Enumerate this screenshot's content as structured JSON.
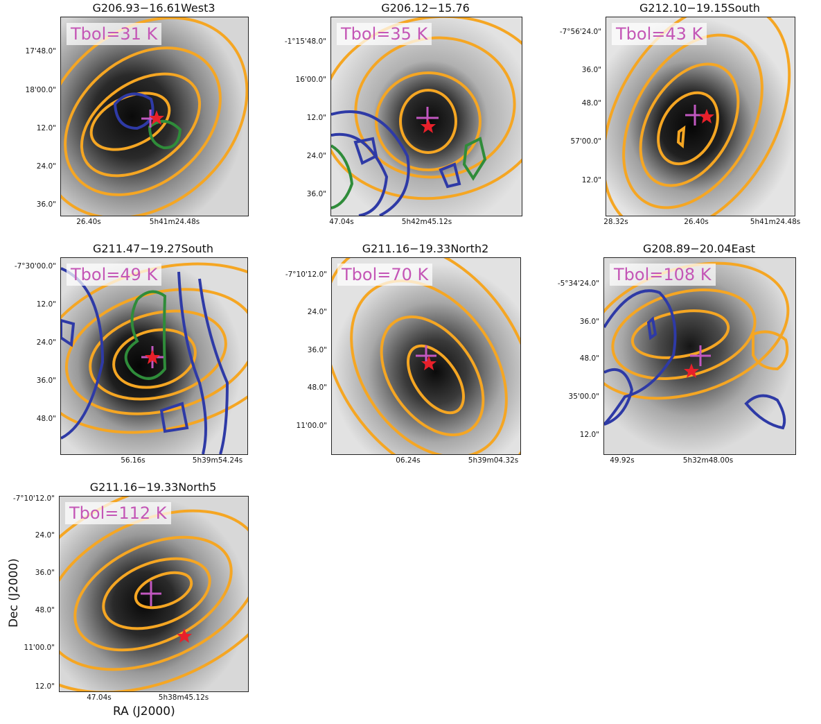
{
  "colors": {
    "contour_orange": "#f5a623",
    "contour_blue": "#2e3aa6",
    "contour_green": "#2f8c3a",
    "cross": "#c157c0",
    "star": "#e8202a",
    "label_text": "#c456b6"
  },
  "axis_labels": {
    "x": "RA (J2000)",
    "y": "Dec (J2000)"
  },
  "panels": [
    {
      "title": "G206.93−16.61West3",
      "tbol": "Tbol=31 K",
      "yticks": [
        "17'48.0\"",
        "18'00.0\"",
        "12.0\"",
        "24.0\"",
        "36.0\""
      ],
      "xticks": [
        "26.40s",
        "5h41m24.48s"
      ]
    },
    {
      "title": "G206.12−15.76",
      "tbol": "Tbol=35 K",
      "yticks": [
        "-1°15'48.0\"",
        "16'00.0\"",
        "12.0\"",
        "24.0\"",
        "36.0\""
      ],
      "xticks": [
        "47.04s",
        "5h42m45.12s"
      ]
    },
    {
      "title": "G212.10−19.15South",
      "tbol": "Tbol=43 K",
      "yticks": [
        "-7°56'24.0\"",
        "36.0\"",
        "48.0\"",
        "57'00.0\"",
        "12.0\""
      ],
      "xticks": [
        "28.32s",
        "26.40s",
        "5h41m24.48s"
      ]
    },
    {
      "title": "G211.47−19.27South",
      "tbol": "Tbol=49 K",
      "yticks": [
        "-7°30'00.0\"",
        "12.0\"",
        "24.0\"",
        "36.0\"",
        "48.0\""
      ],
      "xticks": [
        "56.16s",
        "5h39m54.24s"
      ]
    },
    {
      "title": "G211.16−19.33North2",
      "tbol": "Tbol=70 K",
      "yticks": [
        "-7°10'12.0\"",
        "24.0\"",
        "36.0\"",
        "48.0\"",
        "11'00.0\""
      ],
      "xticks": [
        "06.24s",
        "5h39m04.32s"
      ]
    },
    {
      "title": "G208.89−20.04East",
      "tbol": "Tbol=108 K",
      "yticks": [
        "-5°34'24.0\"",
        "36.0\"",
        "48.0\"",
        "35'00.0\"",
        "12.0\""
      ],
      "xticks": [
        "49.92s",
        "5h32m48.00s"
      ]
    },
    {
      "title": "G211.16−19.33North5",
      "tbol": "Tbol=112 K",
      "yticks": [
        "-7°10'12.0\"",
        "24.0\"",
        "36.0\"",
        "48.0\"",
        "11'00.0\"",
        "12.0\""
      ],
      "xticks": [
        "47.04s",
        "5h38m45.12s"
      ]
    }
  ]
}
